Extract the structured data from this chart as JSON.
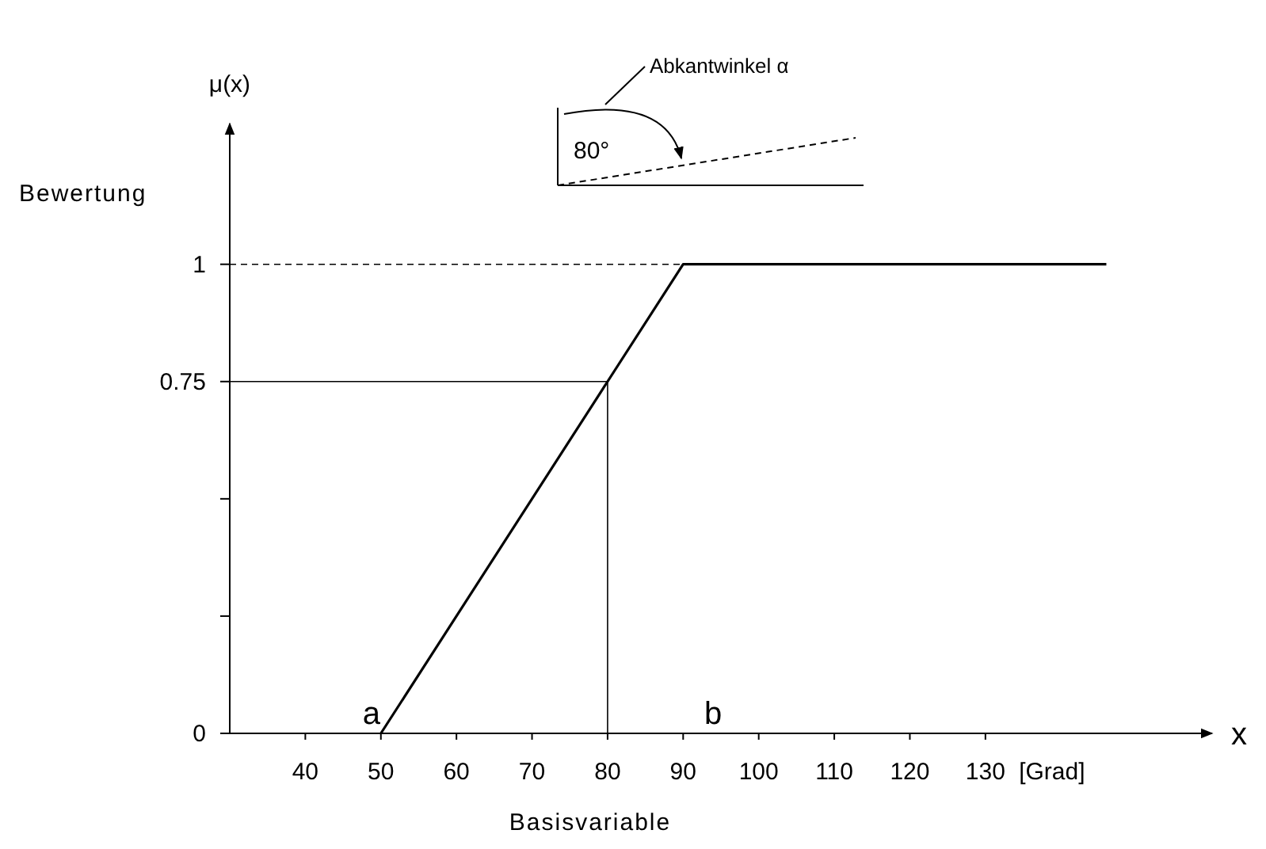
{
  "chart_data": {
    "type": "line",
    "xlabel": "Basisvariable",
    "ylabel": "Bewertung",
    "x": [
      50,
      90,
      146
    ],
    "series": [
      {
        "color": "#000000",
        "values": [
          0,
          1,
          1
        ]
      }
    ],
    "xlim": [
      30,
      160
    ],
    "ylim": [
      0,
      1.3
    ],
    "xticks": [
      40,
      50,
      60,
      70,
      80,
      90,
      100,
      110,
      120,
      130
    ],
    "yticks": [
      0,
      {
        "value": 0.25,
        "label": null
      },
      {
        "value": 0.5,
        "label": null
      },
      0.75,
      1
    ],
    "ref_lines": [
      {
        "axis": "y",
        "value": 1,
        "line_style": "dashed"
      },
      {
        "axis": "y",
        "value": 0.75,
        "line_style": "solid"
      },
      {
        "axis": "x",
        "value": 80,
        "line_style": "solid"
      }
    ],
    "annotations": [
      "μ(x)",
      "x",
      "[Grad]",
      {
        "text": "a",
        "x": 50,
        "y": 0
      },
      "b",
      "Abkantwinkel α",
      "80°"
    ],
    "grid": false,
    "marker": "none",
    "line_style": "solid"
  }
}
